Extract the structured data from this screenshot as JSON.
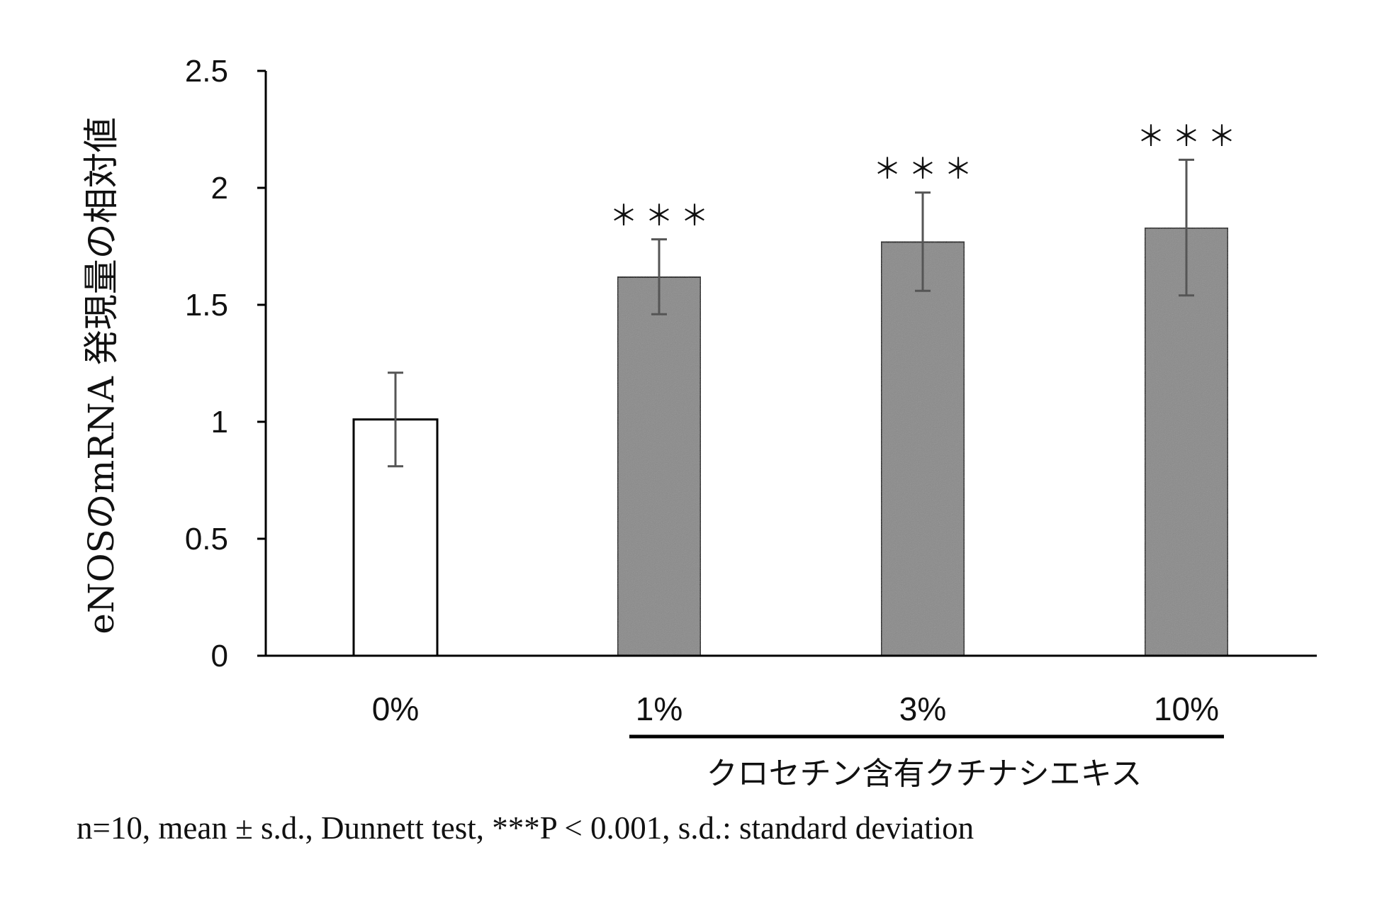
{
  "chart_data": {
    "type": "bar",
    "categories": [
      "0%",
      "1%",
      "3%",
      "10%"
    ],
    "values": [
      1.01,
      1.62,
      1.77,
      1.83
    ],
    "errors": [
      0.2,
      0.16,
      0.21,
      0.29
    ],
    "significance": [
      "",
      "＊＊＊",
      "＊＊＊",
      "＊＊＊"
    ],
    "bar_colors": [
      "#ffffff",
      "#8a8a8a",
      "#8a8a8a",
      "#8a8a8a"
    ],
    "ylabel": "eNOSのmRNA 発現量の相対値",
    "ylim": [
      0,
      2.5
    ],
    "yticks": [
      "0",
      "0.5",
      "1",
      "1.5",
      "2",
      "2.5"
    ],
    "group_label": "クロセチン含有クチナシエキス",
    "grid": false
  },
  "footnote": "n=10, mean ± s.d., Dunnett test, ***P < 0.001, s.d.: standard deviation"
}
